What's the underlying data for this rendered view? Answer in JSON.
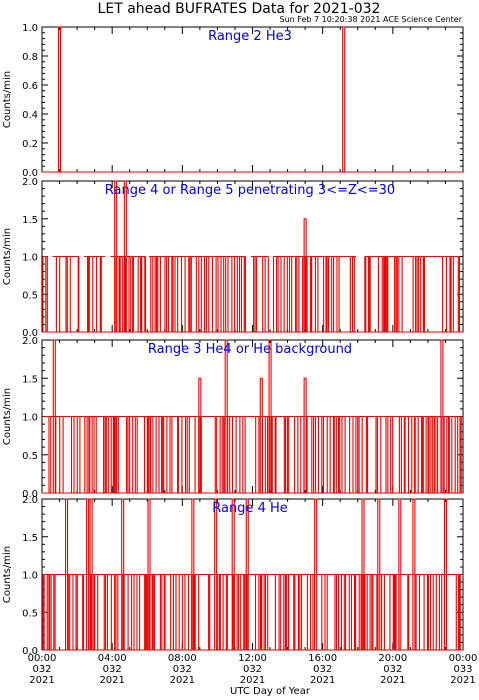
{
  "title": "LET ahead BUFRATES Data for 2021-032",
  "timestamp": "Sun Feb  7 10:20:38 2021 ACE Science Center",
  "xlabel": "UTC Day of Year",
  "ylabel": "Counts/min",
  "colors": {
    "data": "#ee0000",
    "title": "#0000dd",
    "axes": "#000000"
  },
  "x_ticks": [
    {
      "hour": 0,
      "time": "00:00",
      "doy": "032",
      "year": "2021"
    },
    {
      "hour": 4,
      "time": "04:00",
      "doy": "032",
      "year": "2021"
    },
    {
      "hour": 8,
      "time": "08:00",
      "doy": "032",
      "year": "2021"
    },
    {
      "hour": 12,
      "time": "12:00",
      "doy": "032",
      "year": "2021"
    },
    {
      "hour": 16,
      "time": "16:00",
      "doy": "032",
      "year": "2021"
    },
    {
      "hour": 20,
      "time": "20:00",
      "doy": "032",
      "year": "2021"
    },
    {
      "hour": 24,
      "time": "00:00",
      "doy": "033",
      "year": "2021"
    }
  ],
  "chart_data": [
    {
      "type": "line",
      "title": "Range 2 He3",
      "ylim": [
        0,
        1
      ],
      "yticks": [
        "0.0",
        "0.2",
        "0.4",
        "0.6",
        "0.8",
        "1.0"
      ],
      "xlim_hours": [
        0,
        24
      ],
      "spikes": [
        {
          "hour": 1.0,
          "value": 1.0
        },
        {
          "hour": 17.2,
          "value": 1.0
        }
      ]
    },
    {
      "type": "line",
      "title": "Range 4 or Range 5 penetrating 3<=Z<=30",
      "ylim": [
        0,
        2
      ],
      "yticks": [
        "0.0",
        "0.5",
        "1.0",
        "1.5",
        "2.0"
      ],
      "xlim_hours": [
        0,
        24
      ],
      "baseline_ones": [
        [
          0.05,
          0.3
        ],
        [
          0.6,
          2.1
        ],
        [
          2.4,
          3.6
        ],
        [
          3.9,
          5.9
        ],
        [
          6.1,
          11.6
        ],
        [
          11.9,
          12.9
        ],
        [
          13.2,
          17.9
        ],
        [
          18.4,
          23.8
        ]
      ],
      "gaps_zero": [],
      "spikes": [
        {
          "hour": 4.2,
          "value": 2.0
        },
        {
          "hour": 4.75,
          "value": 2.0
        },
        {
          "hour": 15.0,
          "value": 1.5
        }
      ]
    },
    {
      "type": "line",
      "title": "Range 3 He4  or He background",
      "ylim": [
        0,
        2
      ],
      "yticks": [
        "0.0",
        "0.5",
        "1.0",
        "1.5",
        "2.0"
      ],
      "xlim_hours": [
        0,
        24
      ],
      "baseline_ones": [
        [
          0.05,
          23.9
        ]
      ],
      "gaps_zero": [],
      "spikes": [
        {
          "hour": 0.7,
          "value": 2.0
        },
        {
          "hour": 9.0,
          "value": 1.5
        },
        {
          "hour": 10.5,
          "value": 2.0
        },
        {
          "hour": 12.5,
          "value": 1.5
        },
        {
          "hour": 13.0,
          "value": 2.0
        },
        {
          "hour": 15.0,
          "value": 1.5
        },
        {
          "hour": 22.8,
          "value": 2.0
        }
      ]
    },
    {
      "type": "line",
      "title": "Range 4 He",
      "ylim": [
        0,
        2
      ],
      "yticks": [
        "0.0",
        "0.5",
        "1.0",
        "1.5",
        "2.0"
      ],
      "xlim_hours": [
        0,
        24
      ],
      "baseline_ones": [
        [
          0.05,
          23.95
        ]
      ],
      "gaps_zero": [],
      "spikes": [
        {
          "hour": 1.4,
          "value": 2.0
        },
        {
          "hour": 2.6,
          "value": 2.0
        },
        {
          "hour": 2.8,
          "value": 2.0
        },
        {
          "hour": 4.6,
          "value": 2.0
        },
        {
          "hour": 6.1,
          "value": 2.0
        },
        {
          "hour": 8.6,
          "value": 2.0
        },
        {
          "hour": 9.9,
          "value": 2.0
        },
        {
          "hour": 10.9,
          "value": 2.0
        },
        {
          "hour": 11.7,
          "value": 2.0
        },
        {
          "hour": 15.6,
          "value": 2.0
        },
        {
          "hour": 18.3,
          "value": 2.0
        },
        {
          "hour": 19.2,
          "value": 2.0
        },
        {
          "hour": 20.4,
          "value": 2.0
        },
        {
          "hour": 21.2,
          "value": 2.0
        },
        {
          "hour": 23.0,
          "value": 2.0
        }
      ]
    }
  ]
}
